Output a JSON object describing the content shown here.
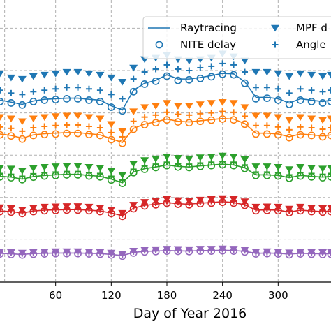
{
  "chart_data": {
    "type": "line",
    "xlabel": "Day of Year 2016",
    "xticks": [
      60,
      120,
      180,
      240,
      300
    ],
    "xlim": [
      0,
      357
    ],
    "ylim": [
      0,
      10
    ],
    "grid": true,
    "legend": {
      "placement": "top-right",
      "entries": [
        {
          "label": "Raytracing",
          "marker": "line"
        },
        {
          "label": "MPF d",
          "marker": "triangle-down"
        },
        {
          "label": "NITE delay",
          "marker": "open-circle"
        },
        {
          "label": "Angle",
          "marker": "plus"
        }
      ]
    },
    "x": [
      0,
      12,
      24,
      36,
      48,
      60,
      72,
      84,
      96,
      108,
      120,
      132,
      144,
      156,
      168,
      180,
      192,
      204,
      216,
      228,
      240,
      252,
      264,
      276,
      288,
      300,
      312,
      324,
      336,
      348,
      357
    ],
    "groups": [
      {
        "color": "#1f77b4",
        "raytracing": [
          6.45,
          6.38,
          6.3,
          6.42,
          6.48,
          6.5,
          6.52,
          6.52,
          6.48,
          6.45,
          6.25,
          6.1,
          6.8,
          7.05,
          7.15,
          7.35,
          7.2,
          7.2,
          7.25,
          7.32,
          7.4,
          7.38,
          7.1,
          6.55,
          6.55,
          6.5,
          6.35,
          6.5,
          6.45,
          6.4,
          6.45
        ],
        "nite": [
          6.4,
          6.35,
          6.28,
          6.4,
          6.45,
          6.47,
          6.5,
          6.5,
          6.45,
          6.4,
          6.2,
          6.07,
          6.75,
          7.02,
          7.12,
          7.3,
          7.15,
          7.17,
          7.22,
          7.28,
          7.37,
          7.35,
          7.05,
          6.5,
          6.52,
          6.45,
          6.3,
          6.45,
          6.4,
          6.35,
          6.4
        ],
        "mpf": [
          7.4,
          7.25,
          7.2,
          7.3,
          7.35,
          7.4,
          7.45,
          7.45,
          7.4,
          7.35,
          7.25,
          7.1,
          7.6,
          7.9,
          7.95,
          8.05,
          7.9,
          7.85,
          7.9,
          7.95,
          8.1,
          8.0,
          7.85,
          7.45,
          7.45,
          7.4,
          7.3,
          7.4,
          7.35,
          7.3,
          7.35
        ],
        "angle": [
          6.8,
          6.7,
          6.65,
          6.75,
          6.8,
          6.85,
          6.9,
          6.9,
          6.85,
          6.8,
          6.65,
          6.5,
          7.2,
          7.45,
          7.55,
          7.7,
          7.55,
          7.5,
          7.6,
          7.65,
          7.75,
          7.7,
          7.45,
          6.9,
          6.9,
          6.85,
          6.7,
          6.85,
          6.8,
          6.75,
          6.8
        ]
      },
      {
        "color": "#ff7f0e",
        "raytracing": [
          5.25,
          5.2,
          5.1,
          5.22,
          5.26,
          5.28,
          5.3,
          5.3,
          5.26,
          5.22,
          5.08,
          4.95,
          5.45,
          5.6,
          5.68,
          5.78,
          5.7,
          5.68,
          5.72,
          5.76,
          5.8,
          5.78,
          5.62,
          5.28,
          5.28,
          5.25,
          5.15,
          5.25,
          5.22,
          5.18,
          5.22
        ],
        "nite": [
          5.22,
          5.18,
          5.07,
          5.2,
          5.23,
          5.25,
          5.27,
          5.27,
          5.23,
          5.2,
          5.05,
          4.92,
          5.42,
          5.58,
          5.65,
          5.75,
          5.68,
          5.65,
          5.7,
          5.74,
          5.78,
          5.75,
          5.6,
          5.25,
          5.25,
          5.22,
          5.12,
          5.22,
          5.2,
          5.15,
          5.2
        ],
        "mpf": [
          5.85,
          5.8,
          5.7,
          5.8,
          5.85,
          5.88,
          5.9,
          5.9,
          5.85,
          5.8,
          5.6,
          5.35,
          6.05,
          6.2,
          6.25,
          6.35,
          6.25,
          6.25,
          6.3,
          6.35,
          6.38,
          6.35,
          6.2,
          5.9,
          5.9,
          5.85,
          5.75,
          5.85,
          5.8,
          5.75,
          5.8
        ],
        "angle": [
          5.5,
          5.45,
          5.35,
          5.47,
          5.52,
          5.55,
          5.57,
          5.57,
          5.52,
          5.47,
          5.3,
          5.15,
          5.7,
          5.85,
          5.92,
          6.02,
          5.95,
          5.92,
          5.97,
          6.0,
          6.05,
          6.02,
          5.88,
          5.55,
          5.55,
          5.5,
          5.4,
          5.5,
          5.47,
          5.42,
          5.47
        ]
      },
      {
        "color": "#2ca02c",
        "raytracing": [
          3.75,
          3.72,
          3.65,
          3.74,
          3.78,
          3.8,
          3.82,
          3.82,
          3.78,
          3.75,
          3.65,
          3.52,
          3.9,
          4.02,
          4.08,
          4.15,
          4.1,
          4.08,
          4.12,
          4.15,
          4.18,
          4.15,
          4.05,
          3.8,
          3.8,
          3.78,
          3.7,
          3.78,
          3.75,
          3.72,
          3.75
        ],
        "nite": [
          3.73,
          3.7,
          3.63,
          3.72,
          3.76,
          3.78,
          3.8,
          3.8,
          3.76,
          3.73,
          3.62,
          3.5,
          3.88,
          4.0,
          4.06,
          4.13,
          4.08,
          4.06,
          4.1,
          4.13,
          4.16,
          4.13,
          4.03,
          3.78,
          3.78,
          3.76,
          3.68,
          3.76,
          3.73,
          3.7,
          3.73
        ],
        "mpf": [
          4.05,
          4.02,
          3.95,
          4.04,
          4.08,
          4.1,
          4.12,
          4.12,
          4.08,
          4.05,
          3.95,
          3.8,
          4.2,
          4.32,
          4.38,
          4.45,
          4.4,
          4.38,
          4.42,
          4.45,
          4.48,
          4.45,
          4.35,
          4.1,
          4.1,
          4.08,
          4.0,
          4.08,
          4.05,
          4.02,
          4.05
        ],
        "angle": [
          3.85,
          3.82,
          3.75,
          3.84,
          3.88,
          3.9,
          3.92,
          3.92,
          3.88,
          3.85,
          3.75,
          3.62,
          4.0,
          4.12,
          4.18,
          4.25,
          4.2,
          4.18,
          4.22,
          4.25,
          4.28,
          4.25,
          4.15,
          3.9,
          3.9,
          3.88,
          3.8,
          3.88,
          3.85,
          3.82,
          3.85
        ]
      },
      {
        "color": "#d62728",
        "raytracing": [
          2.52,
          2.5,
          2.45,
          2.52,
          2.55,
          2.56,
          2.57,
          2.57,
          2.55,
          2.52,
          2.45,
          2.35,
          2.62,
          2.72,
          2.76,
          2.82,
          2.78,
          2.76,
          2.8,
          2.82,
          2.85,
          2.82,
          2.74,
          2.55,
          2.56,
          2.55,
          2.48,
          2.55,
          2.52,
          2.5,
          2.52
        ],
        "nite": [
          2.5,
          2.48,
          2.43,
          2.5,
          2.53,
          2.54,
          2.55,
          2.55,
          2.53,
          2.5,
          2.43,
          2.33,
          2.6,
          2.7,
          2.74,
          2.8,
          2.76,
          2.74,
          2.78,
          2.8,
          2.83,
          2.8,
          2.72,
          2.53,
          2.54,
          2.53,
          2.46,
          2.53,
          2.5,
          2.48,
          2.5
        ],
        "mpf": [
          2.65,
          2.62,
          2.57,
          2.64,
          2.67,
          2.68,
          2.69,
          2.69,
          2.67,
          2.64,
          2.57,
          2.45,
          2.74,
          2.84,
          2.88,
          2.94,
          2.9,
          2.88,
          2.92,
          2.94,
          2.97,
          2.94,
          2.86,
          2.67,
          2.68,
          2.67,
          2.6,
          2.67,
          2.64,
          2.62,
          2.64
        ],
        "angle": [
          2.58,
          2.55,
          2.5,
          2.57,
          2.6,
          2.61,
          2.62,
          2.62,
          2.6,
          2.57,
          2.5,
          2.4,
          2.67,
          2.77,
          2.81,
          2.87,
          2.83,
          2.81,
          2.85,
          2.87,
          2.9,
          2.87,
          2.79,
          2.6,
          2.61,
          2.6,
          2.53,
          2.6,
          2.57,
          2.55,
          2.57
        ]
      },
      {
        "color": "#9467bd",
        "raytracing": [
          1.02,
          1.0,
          0.98,
          1.01,
          1.02,
          1.03,
          1.03,
          1.03,
          1.02,
          1.01,
          0.98,
          0.94,
          1.05,
          1.09,
          1.1,
          1.12,
          1.11,
          1.1,
          1.12,
          1.12,
          1.13,
          1.12,
          1.09,
          1.02,
          1.03,
          1.02,
          0.99,
          1.02,
          1.01,
          1.0,
          1.01
        ],
        "nite": [
          1.0,
          0.98,
          0.96,
          0.99,
          1.0,
          1.01,
          1.01,
          1.01,
          1.0,
          0.99,
          0.96,
          0.92,
          1.03,
          1.07,
          1.08,
          1.1,
          1.09,
          1.08,
          1.1,
          1.1,
          1.11,
          1.1,
          1.07,
          1.0,
          1.01,
          1.0,
          0.97,
          1.0,
          0.99,
          0.98,
          0.99
        ],
        "mpf": [
          1.08,
          1.06,
          1.04,
          1.07,
          1.08,
          1.09,
          1.09,
          1.09,
          1.08,
          1.07,
          1.04,
          1.0,
          1.11,
          1.15,
          1.16,
          1.18,
          1.17,
          1.16,
          1.18,
          1.18,
          1.19,
          1.18,
          1.15,
          1.08,
          1.09,
          1.08,
          1.05,
          1.08,
          1.07,
          1.06,
          1.07
        ],
        "angle": [
          1.05,
          1.03,
          1.01,
          1.04,
          1.05,
          1.06,
          1.06,
          1.06,
          1.05,
          1.04,
          1.01,
          0.97,
          1.08,
          1.12,
          1.13,
          1.15,
          1.14,
          1.13,
          1.15,
          1.15,
          1.16,
          1.15,
          1.12,
          1.05,
          1.06,
          1.05,
          1.02,
          1.05,
          1.04,
          1.03,
          1.04
        ]
      }
    ]
  }
}
